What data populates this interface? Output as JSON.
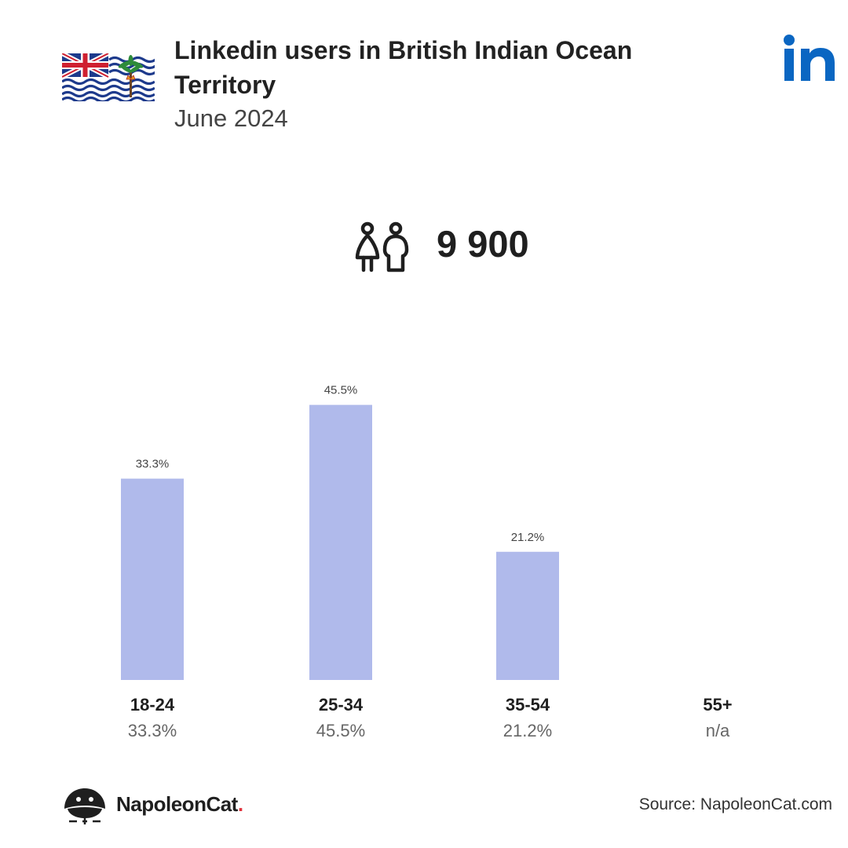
{
  "header": {
    "title": "Linkedin users in British Indian Ocean Territory",
    "subtitle": "June 2024",
    "flag_icon": "british-indian-ocean-territory-flag",
    "brand_icon": "linkedin-logo"
  },
  "summary": {
    "icon": "users-icon",
    "total": "9 900"
  },
  "chart_data": {
    "type": "bar",
    "categories": [
      "18-24",
      "25-34",
      "35-54",
      "55+"
    ],
    "values": [
      33.3,
      45.5,
      21.2,
      null
    ],
    "value_labels": [
      "33.3%",
      "45.5%",
      "21.2%",
      ""
    ],
    "category_values": [
      "33.3%",
      "45.5%",
      "21.2%",
      "n/a"
    ],
    "ylim": [
      0,
      50
    ],
    "grid": false,
    "bar_color": "#b0baeb"
  },
  "footer": {
    "brand_name": "NapoleonCat",
    "brand_dot": ".",
    "source": "Source: NapoleonCat.com"
  },
  "colors": {
    "linkedin_blue": "#0a66c2",
    "bar": "#b0baeb",
    "brand_dot": "#e0303a"
  }
}
